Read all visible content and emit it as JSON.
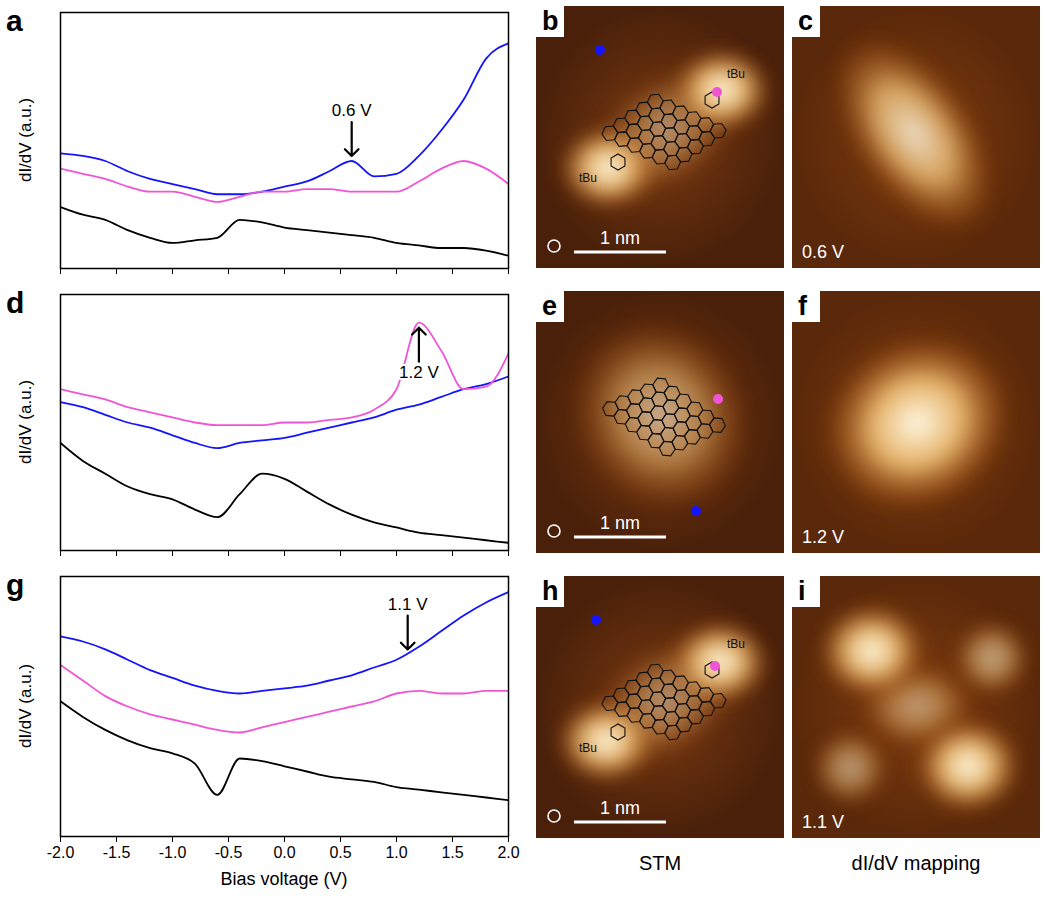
{
  "chart_data": [
    {
      "panel": "a",
      "type": "line",
      "y_label": "dI/dV (a.u.)",
      "x": [
        -2.0,
        -1.8,
        -1.6,
        -1.4,
        -1.2,
        -1.0,
        -0.8,
        -0.6,
        -0.4,
        -0.2,
        0.0,
        0.2,
        0.4,
        0.6,
        0.8,
        1.0,
        1.2,
        1.4,
        1.6,
        1.8,
        2.0
      ],
      "series": [
        {
          "color": "#1414ff",
          "values": [
            4.5,
            4.4,
            4.2,
            3.8,
            3.5,
            3.3,
            3.1,
            2.9,
            2.9,
            3.0,
            3.2,
            3.4,
            3.8,
            4.2,
            3.6,
            3.7,
            4.4,
            5.4,
            6.6,
            8.2,
            8.8
          ]
        },
        {
          "color": "#f055d5",
          "values": [
            3.9,
            3.7,
            3.5,
            3.2,
            3.0,
            3.0,
            2.8,
            2.6,
            2.8,
            3.0,
            3.0,
            3.1,
            3.1,
            3.0,
            3.0,
            3.0,
            3.4,
            3.9,
            4.2,
            3.9,
            3.3
          ]
        },
        {
          "color": "#000000",
          "values": [
            2.4,
            2.1,
            1.9,
            1.5,
            1.2,
            1.0,
            1.1,
            1.2,
            1.9,
            1.8,
            1.6,
            1.5,
            1.4,
            1.3,
            1.2,
            1.0,
            0.9,
            0.8,
            0.8,
            0.7,
            0.5
          ]
        }
      ],
      "xlim": [
        -2,
        2
      ],
      "ylim": [
        0,
        10
      ],
      "xticks": [
        {
          "value": -2,
          "label": "-2.0"
        },
        {
          "value": -1.5,
          "label": "-1.5"
        },
        {
          "value": -1,
          "label": "-1.0"
        },
        {
          "value": -0.5,
          "label": "-0.5"
        },
        {
          "value": 0,
          "label": "0.0"
        },
        {
          "value": 0.5,
          "label": "0.5"
        },
        {
          "value": 1,
          "label": "1.0"
        },
        {
          "value": 1.5,
          "label": "1.5"
        },
        {
          "value": 2,
          "label": "2.0"
        }
      ],
      "tick_labels": false,
      "annotations": [
        {
          "text": "0.6 V",
          "x": 0.6,
          "y": 4.2
        }
      ]
    },
    {
      "panel": "d",
      "type": "line",
      "y_label": "dI/dV (a.u.)",
      "x": [
        -2.0,
        -1.8,
        -1.6,
        -1.4,
        -1.2,
        -1.0,
        -0.8,
        -0.6,
        -0.4,
        -0.2,
        0.0,
        0.2,
        0.4,
        0.6,
        0.8,
        1.0,
        1.2,
        1.4,
        1.6,
        1.8,
        2.0
      ],
      "series": [
        {
          "color": "#1414ff",
          "values": [
            5.8,
            5.6,
            5.3,
            5.0,
            4.8,
            4.5,
            4.2,
            4.0,
            4.2,
            4.3,
            4.4,
            4.6,
            4.8,
            5.0,
            5.2,
            5.5,
            5.7,
            6.0,
            6.3,
            6.5,
            6.8
          ]
        },
        {
          "color": "#f055d5",
          "values": [
            6.3,
            6.1,
            5.9,
            5.6,
            5.4,
            5.2,
            5.0,
            4.9,
            4.9,
            4.9,
            5.0,
            5.0,
            5.1,
            5.2,
            5.5,
            6.3,
            8.9,
            7.8,
            6.3,
            6.4,
            7.7
          ]
        },
        {
          "color": "#000000",
          "values": [
            4.2,
            3.5,
            3.0,
            2.5,
            2.2,
            2.0,
            1.6,
            1.3,
            2.2,
            3.0,
            2.8,
            2.3,
            1.8,
            1.4,
            1.1,
            0.9,
            0.7,
            0.6,
            0.5,
            0.4,
            0.3
          ]
        }
      ],
      "xlim": [
        -2,
        2
      ],
      "ylim": [
        0,
        10
      ],
      "xticks": [
        {
          "value": -2,
          "label": "-2.0"
        },
        {
          "value": -1.5,
          "label": "-1.5"
        },
        {
          "value": -1,
          "label": "-1.0"
        },
        {
          "value": -0.5,
          "label": "-0.5"
        },
        {
          "value": 0,
          "label": "0.0"
        },
        {
          "value": 0.5,
          "label": "0.5"
        },
        {
          "value": 1,
          "label": "1.0"
        },
        {
          "value": 1.5,
          "label": "1.5"
        },
        {
          "value": 2,
          "label": "2.0"
        }
      ],
      "tick_labels": false,
      "annotations": [
        {
          "text": "1.2 V",
          "x": 1.2,
          "y": 8.9
        }
      ]
    },
    {
      "panel": "g",
      "type": "line",
      "y_label": "dI/dV (a.u.)",
      "x_label": "Bias voltage (V)",
      "x": [
        -2.0,
        -1.8,
        -1.6,
        -1.4,
        -1.2,
        -1.0,
        -0.8,
        -0.6,
        -0.4,
        -0.2,
        0.0,
        0.2,
        0.4,
        0.6,
        0.8,
        1.0,
        1.2,
        1.4,
        1.6,
        1.8,
        2.0
      ],
      "series": [
        {
          "color": "#1414ff",
          "values": [
            7.7,
            7.5,
            7.2,
            6.8,
            6.4,
            6.1,
            5.8,
            5.6,
            5.5,
            5.6,
            5.7,
            5.8,
            6.0,
            6.2,
            6.5,
            6.8,
            7.3,
            7.9,
            8.5,
            9.0,
            9.4
          ]
        },
        {
          "color": "#f055d5",
          "values": [
            6.6,
            6.0,
            5.4,
            5.0,
            4.7,
            4.5,
            4.3,
            4.1,
            4.0,
            4.2,
            4.4,
            4.6,
            4.8,
            5.0,
            5.2,
            5.5,
            5.6,
            5.5,
            5.5,
            5.6,
            5.6
          ]
        },
        {
          "color": "#000000",
          "values": [
            5.2,
            4.6,
            4.1,
            3.7,
            3.4,
            3.2,
            2.8,
            1.6,
            3.0,
            2.9,
            2.7,
            2.5,
            2.3,
            2.2,
            2.1,
            1.9,
            1.8,
            1.7,
            1.6,
            1.5,
            1.4
          ]
        }
      ],
      "xlim": [
        -2,
        2
      ],
      "ylim": [
        0,
        10
      ],
      "xticks": [
        {
          "value": -2,
          "label": "-2.0"
        },
        {
          "value": -1.5,
          "label": "-1.5"
        },
        {
          "value": -1,
          "label": "-1.0"
        },
        {
          "value": -0.5,
          "label": "-0.5"
        },
        {
          "value": 0,
          "label": "0.0"
        },
        {
          "value": 0.5,
          "label": "0.5"
        },
        {
          "value": 1,
          "label": "1.0"
        },
        {
          "value": 1.5,
          "label": "1.5"
        },
        {
          "value": 2,
          "label": "2.0"
        }
      ],
      "tick_labels": "x",
      "annotations": [
        {
          "text": "1.1 V",
          "x": 1.1,
          "y": 7.0
        }
      ]
    }
  ],
  "images": [
    {
      "panel": "b",
      "scale_bar": "1 nm",
      "labels": [
        "tBu",
        "tBu"
      ]
    },
    {
      "panel": "c",
      "bias": "0.6 V"
    },
    {
      "panel": "e",
      "scale_bar": "1 nm"
    },
    {
      "panel": "f",
      "bias": "1.2 V"
    },
    {
      "panel": "h",
      "scale_bar": "1 nm",
      "labels": [
        "tBu",
        "tBu"
      ]
    },
    {
      "panel": "i",
      "bias": "1.1 V"
    }
  ],
  "column_labels": [
    "STM",
    "dI/dV mapping"
  ]
}
